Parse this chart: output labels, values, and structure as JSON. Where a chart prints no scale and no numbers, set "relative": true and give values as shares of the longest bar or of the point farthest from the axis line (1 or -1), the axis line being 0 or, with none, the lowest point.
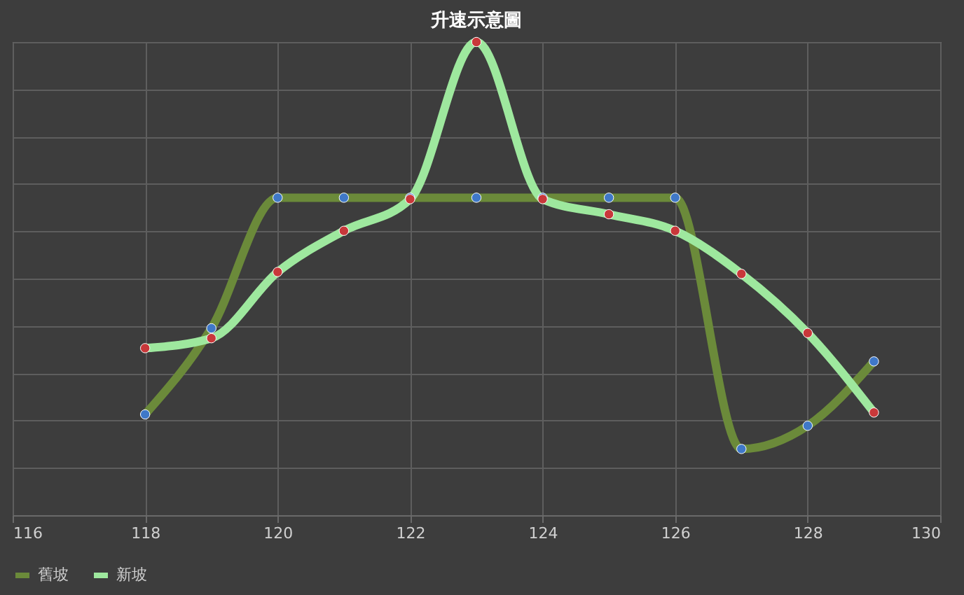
{
  "chart_data": {
    "type": "line",
    "title": "升速示意圖",
    "relative": true,
    "x": [
      118,
      119,
      120,
      121,
      122,
      123,
      124,
      125,
      126,
      127,
      128,
      129
    ],
    "xlim": [
      116,
      130
    ],
    "xticks": [
      116,
      118,
      120,
      122,
      124,
      126,
      128,
      130
    ],
    "series": [
      {
        "name": "舊坡",
        "color": "#6b8a3a",
        "colors": [
          "#3f78c8",
          "#3f78c8",
          "#3f78c8",
          "#3f78c8",
          "#3f78c8",
          "#3f78c8",
          "#3f78c8",
          "#3f78c8",
          "#3f78c8",
          "#3f78c8",
          "#3f78c8",
          "#3f78c8"
        ],
        "values": [
          0.213,
          0.395,
          0.671,
          0.671,
          0.671,
          0.671,
          0.671,
          0.671,
          0.671,
          0.14,
          0.189,
          0.325
        ]
      },
      {
        "name": "新坡",
        "color": "#9ee89e",
        "colors": [
          "#c8383a",
          "#c8383a",
          "#c8383a",
          "#c8383a",
          "#c8383a",
          "#c8383a",
          "#c8383a",
          "#c8383a",
          "#c8383a",
          "#c8383a",
          "#c8383a",
          "#c8383a"
        ],
        "values": [
          0.353,
          0.374,
          0.514,
          0.601,
          0.668,
          1.0,
          0.668,
          0.636,
          0.601,
          0.51,
          0.385,
          0.217
        ]
      }
    ],
    "grid": true,
    "legend": "bottom",
    "marker": "circle",
    "line_style": "solid"
  }
}
